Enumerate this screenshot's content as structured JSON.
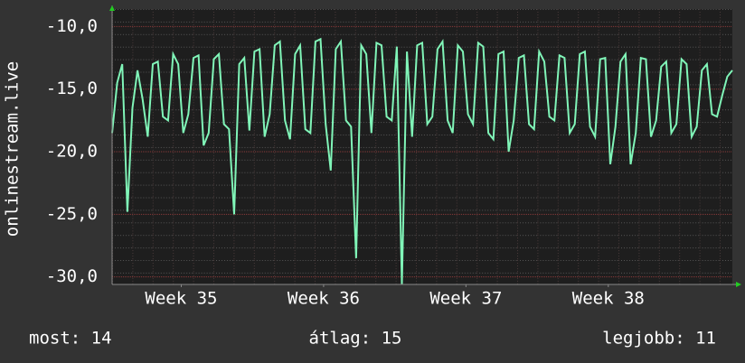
{
  "chart_data": {
    "type": "line",
    "ylabel": "onlinestream.live",
    "color": "#80f5b8",
    "values": [
      -18.5,
      -14.5,
      -13,
      -24.8,
      -16.5,
      -13.5,
      -15.8,
      -18.8,
      -13,
      -12.8,
      -17.2,
      -17.5,
      -12.2,
      -13,
      -18.5,
      -17,
      -12.5,
      -12.3,
      -19.5,
      -18.5,
      -12.6,
      -12.2,
      -17.8,
      -18.2,
      -25,
      -13,
      -12.5,
      -18.3,
      -12,
      -11.8,
      -18.8,
      -17,
      -11.5,
      -11.2,
      -17.5,
      -19,
      -12.2,
      -11.5,
      -18.2,
      -18.5,
      -11.2,
      -11,
      -17.8,
      -21.5,
      -11.8,
      -11.2,
      -17.5,
      -18,
      -28.5,
      -11.5,
      -12.2,
      -18.5,
      -11.3,
      -11.5,
      -17.2,
      -17.5,
      -11.6,
      -30.6,
      -12,
      -18.8,
      -11.5,
      -11.3,
      -17.8,
      -17.2,
      -11.8,
      -11.2,
      -17.5,
      -18.5,
      -11.5,
      -12,
      -17,
      -17.8,
      -11.3,
      -11.6,
      -18.5,
      -19,
      -12.2,
      -12,
      -20,
      -17.5,
      -12.5,
      -12.3,
      -17.8,
      -18.2,
      -12,
      -12.8,
      -17.2,
      -17.5,
      -12.3,
      -12.5,
      -18.5,
      -17.8,
      -12.2,
      -12,
      -18,
      -18.8,
      -12.6,
      -12.5,
      -21,
      -18,
      -12.8,
      -12.2,
      -21,
      -18.5,
      -12.5,
      -12.6,
      -18.8,
      -17.5,
      -13.2,
      -12.8,
      -18.5,
      -17.8,
      -12.6,
      -13,
      -18.8,
      -18,
      -13.5,
      -13,
      -17,
      -17.2,
      -15.5,
      -14,
      -13.5
    ],
    "xlim": [
      0,
      122
    ],
    "xticks": [
      {
        "value": 13.6,
        "label": "Week 35"
      },
      {
        "value": 41.6,
        "label": "Week 36"
      },
      {
        "value": 69.6,
        "label": "Week 37"
      },
      {
        "value": 97.6,
        "label": "Week 38"
      }
    ],
    "ylim": [
      -30.6,
      -8.6
    ],
    "yticks": [
      {
        "value": -10,
        "label": "-10,0"
      },
      {
        "value": -15,
        "label": "-15,0"
      },
      {
        "value": -20,
        "label": "-20,0"
      },
      {
        "value": -25,
        "label": "-25,0"
      },
      {
        "value": -30,
        "label": "-30,0"
      }
    ],
    "grid": true,
    "stats": [
      "most: 14",
      "átlag: 15",
      "legjobb: 11"
    ]
  }
}
